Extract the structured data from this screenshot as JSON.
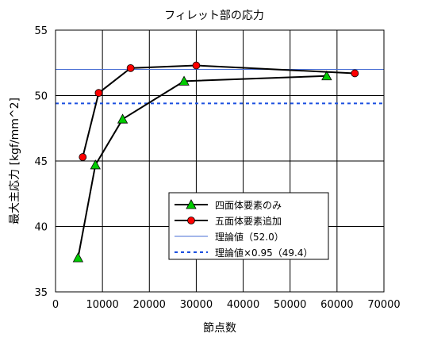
{
  "chart_data": {
    "type": "line",
    "title": "フィレット部の応力",
    "xlabel": "節点数",
    "ylabel": "最大主応力 [kgf/mm^2]",
    "xlim": [
      0,
      70000
    ],
    "ylim": [
      35,
      55
    ],
    "x_ticks": [
      "0",
      "10000",
      "20000",
      "30000",
      "40000",
      "50000",
      "60000",
      "70000"
    ],
    "y_ticks": [
      "35",
      "40",
      "45",
      "50",
      "55"
    ],
    "grid": true,
    "legend_position": "bottom-right",
    "series": [
      {
        "name": "四面体要素のみ",
        "marker": "triangle",
        "marker_color": "#00cc00",
        "line_color": "#000000",
        "x": [
          4800,
          8500,
          14300,
          27400,
          57800
        ],
        "y": [
          37.6,
          44.7,
          48.2,
          51.1,
          51.5
        ]
      },
      {
        "name": "五面体要素追加",
        "marker": "circle",
        "marker_color": "#ff0000",
        "line_color": "#000000",
        "x": [
          5800,
          9200,
          16000,
          30000,
          63800
        ],
        "y": [
          45.3,
          50.2,
          52.1,
          52.3,
          51.7
        ]
      }
    ],
    "reference_lines": [
      {
        "name": "理論値（52.0）",
        "y": 52.0,
        "color": "#4a6fd4",
        "style": "solid"
      },
      {
        "name": "理論値×0.95（49.4）",
        "y": 49.4,
        "color": "#1a4fe0",
        "style": "dashed"
      }
    ]
  }
}
